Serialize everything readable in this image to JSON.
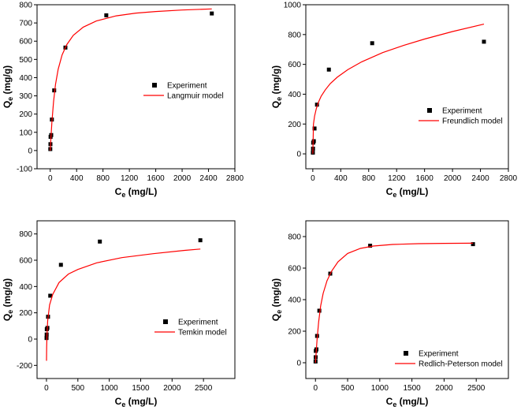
{
  "chart_data": [
    {
      "type": "scatter",
      "xlabel": "C",
      "xlabel_sub": "e",
      "xlabel_unit": " (mg/L)",
      "ylabel": "Q",
      "ylabel_sub": "e",
      "ylabel_unit": " (mg/g)",
      "xlim": [
        -200,
        2800
      ],
      "ylim": [
        -100,
        800
      ],
      "xticks": [
        0,
        400,
        800,
        1200,
        1600,
        2000,
        2400,
        2800
      ],
      "yticks": [
        -100,
        0,
        100,
        200,
        300,
        400,
        500,
        600,
        700,
        800
      ],
      "legend_position": "center-right",
      "series": [
        {
          "name": "Experiment",
          "kind": "scatter",
          "color": "#000000",
          "x": [
            1,
            3,
            5,
            15,
            25,
            60,
            230,
            850,
            2450
          ],
          "y": [
            8,
            35,
            75,
            85,
            170,
            330,
            565,
            742,
            752
          ]
        },
        {
          "name": "Langmuir model",
          "kind": "line",
          "color": "#ff0000",
          "x": [
            0,
            10,
            25,
            50,
            80,
            120,
            180,
            250,
            350,
            500,
            700,
            1000,
            1300,
            1600,
            2000,
            2450
          ],
          "y": [
            0,
            67,
            153,
            266,
            362,
            446,
            525,
            581,
            632,
            677,
            711,
            739,
            754,
            763,
            771,
            777
          ]
        }
      ]
    },
    {
      "type": "scatter",
      "xlabel": "C",
      "xlabel_sub": "e",
      "xlabel_unit": " (mg/L)",
      "ylabel": "Q",
      "ylabel_sub": "e",
      "ylabel_unit": " (mg/g)",
      "xlim": [
        -100,
        2800
      ],
      "ylim": [
        -100,
        1000
      ],
      "xticks": [
        0,
        400,
        800,
        1200,
        1600,
        2000,
        2400,
        2800
      ],
      "yticks": [
        0,
        200,
        400,
        600,
        800,
        1000
      ],
      "legend_position": "center-right",
      "series": [
        {
          "name": "Experiment",
          "kind": "scatter",
          "color": "#000000",
          "x": [
            1,
            3,
            5,
            15,
            25,
            60,
            230,
            850,
            2450
          ],
          "y": [
            8,
            35,
            75,
            85,
            170,
            330,
            565,
            742,
            752
          ]
        },
        {
          "name": "Freundlich model",
          "kind": "line",
          "color": "#ff0000",
          "x": [
            0,
            10,
            25,
            50,
            80,
            120,
            180,
            250,
            350,
            500,
            700,
            1000,
            1300,
            1600,
            2000,
            2450
          ],
          "y": [
            0,
            200,
            253,
            303,
            346,
            387,
            430,
            471,
            514,
            564,
            617,
            679,
            727,
            770,
            820,
            870
          ]
        }
      ]
    },
    {
      "type": "scatter",
      "xlabel": "C",
      "xlabel_sub": "e",
      "xlabel_unit": " (mg/L)",
      "ylabel": "Q",
      "ylabel_sub": "e",
      "ylabel_unit": " (mg/g)",
      "xlim": [
        -150,
        3000
      ],
      "ylim": [
        -300,
        900
      ],
      "xticks": [
        0,
        500,
        1000,
        1500,
        2000,
        2500
      ],
      "yticks": [
        -200,
        0,
        200,
        400,
        600,
        800
      ],
      "legend_position": "center-right",
      "series": [
        {
          "name": "Experiment",
          "kind": "scatter",
          "color": "#000000",
          "x": [
            1,
            3,
            5,
            15,
            25,
            60,
            230,
            850,
            2450
          ],
          "y": [
            8,
            35,
            75,
            85,
            170,
            330,
            565,
            742,
            752
          ]
        },
        {
          "name": "Temkin model",
          "kind": "line",
          "color": "#ff0000",
          "x": [
            1,
            3,
            8,
            20,
            50,
            100,
            200,
            350,
            500,
            800,
            1200,
            1700,
            2200,
            2450
          ],
          "y": [
            -165,
            -60,
            30,
            140,
            260,
            340,
            430,
            495,
            530,
            580,
            620,
            650,
            675,
            685
          ]
        }
      ]
    },
    {
      "type": "scatter",
      "xlabel": "C",
      "xlabel_sub": "e",
      "xlabel_unit": " (mg/L)",
      "ylabel": "Q",
      "ylabel_sub": "e",
      "ylabel_unit": " (mg/g)",
      "xlim": [
        -150,
        3000
      ],
      "ylim": [
        -100,
        900
      ],
      "xticks": [
        0,
        500,
        1000,
        1500,
        2000,
        2500
      ],
      "yticks": [
        0,
        200,
        400,
        600,
        800
      ],
      "legend_position": "center-right",
      "series": [
        {
          "name": "Experiment",
          "kind": "scatter",
          "color": "#000000",
          "x": [
            1,
            3,
            5,
            15,
            25,
            60,
            230,
            850,
            2450
          ],
          "y": [
            8,
            35,
            75,
            85,
            170,
            330,
            565,
            742,
            752
          ]
        },
        {
          "name": "Redlich-Peterson model",
          "kind": "line",
          "color": "#ff0000",
          "x": [
            0,
            10,
            25,
            50,
            80,
            120,
            180,
            250,
            350,
            500,
            700,
            900,
            1200,
            1600,
            2000,
            2450
          ],
          "y": [
            0,
            62,
            150,
            260,
            360,
            440,
            520,
            580,
            640,
            693,
            725,
            740,
            750,
            755,
            757,
            758
          ]
        }
      ]
    }
  ]
}
